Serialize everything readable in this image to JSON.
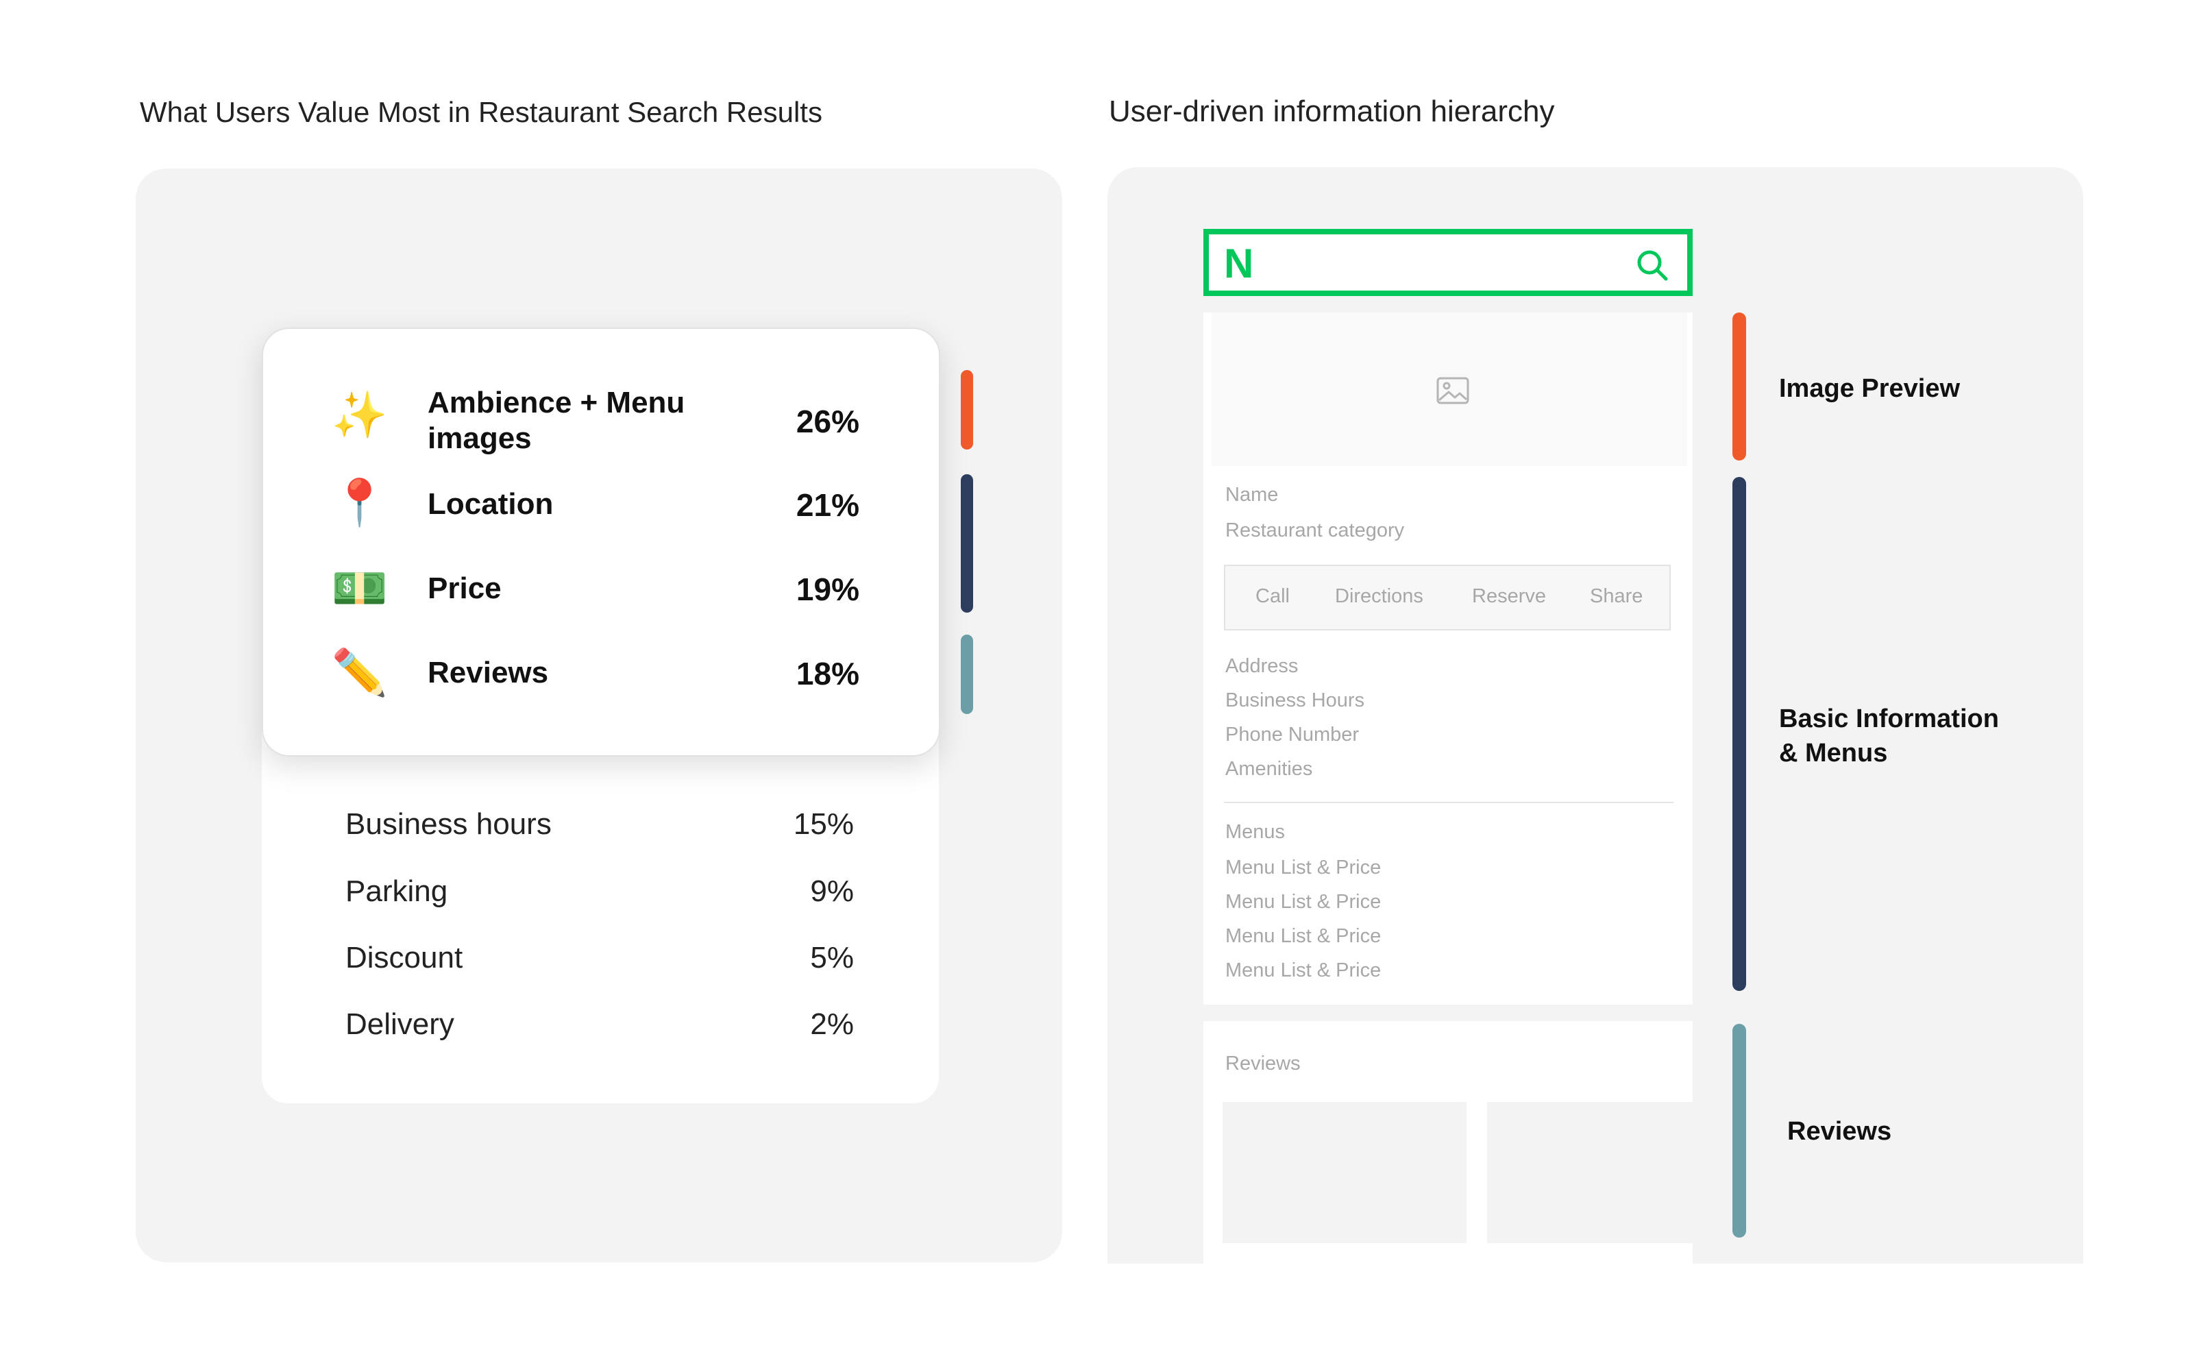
{
  "left_title": "What Users Value Most in Restaurant Search Results",
  "right_title": "User-driven information hierarchy",
  "colors": {
    "orange": "#f05a2a",
    "navy": "#2d3d5e",
    "teal": "#6b9ea6",
    "naver_green": "#03c75a"
  },
  "top_items": [
    {
      "icon": "sparkles-icon",
      "glyph": "✨",
      "label": "Ambience + Menu images",
      "pct": "26%"
    },
    {
      "icon": "pushpin-icon",
      "glyph": "📍",
      "label": "Location",
      "pct": "21%"
    },
    {
      "icon": "money-icon",
      "glyph": "💵",
      "label": "Price",
      "pct": "19%"
    },
    {
      "icon": "pencil-icon",
      "glyph": "✏️",
      "label": "Reviews",
      "pct": "18%"
    }
  ],
  "other_items": [
    {
      "label": "Business hours",
      "pct": "15%"
    },
    {
      "label": "Parking",
      "pct": "9%"
    },
    {
      "label": "Discount",
      "pct": "5%"
    },
    {
      "label": "Delivery",
      "pct": "2%"
    }
  ],
  "mockup": {
    "logo": "N",
    "name": "Name",
    "category": "Restaurant category",
    "actions": [
      "Call",
      "Directions",
      "Reserve",
      "Share"
    ],
    "info": [
      "Address",
      "Business Hours",
      "Phone Number",
      "Amenities"
    ],
    "menus_label": "Menus",
    "menu_items": [
      "Menu List & Price",
      "Menu List & Price",
      "Menu List & Price",
      "Menu List & Price"
    ],
    "reviews_label": "Reviews"
  },
  "hierarchy": {
    "image_preview": "Image Preview",
    "basic_info_line1": "Basic Information",
    "basic_info_line2": "& Menus",
    "reviews": "Reviews"
  }
}
